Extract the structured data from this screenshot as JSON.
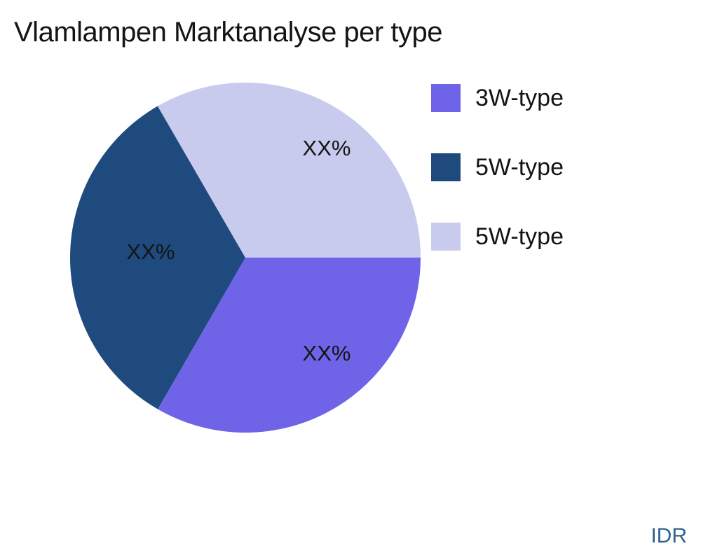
{
  "page": {
    "background": "#ffffff"
  },
  "chart_data": {
    "type": "pie",
    "title": "Vlamlampen Marktanalyse per type",
    "labels": [
      "3W-type",
      "5W-type",
      "5W-type"
    ],
    "values": [
      33.33,
      33.33,
      33.34
    ],
    "slice_labels": [
      "XX%",
      "XX%",
      "XX%"
    ],
    "colors": [
      "#6F63E8",
      "#1F4A7D",
      "#C8CBEE"
    ],
    "text_color": "#141414",
    "start_angle_deg": 0,
    "direction": "clockwise",
    "legend_position": "right",
    "legend_entries": [
      "3W-type",
      "5W-type",
      "5W-type"
    ]
  },
  "footer": {
    "watermark": "IDR",
    "watermark_color": "#31618F"
  }
}
